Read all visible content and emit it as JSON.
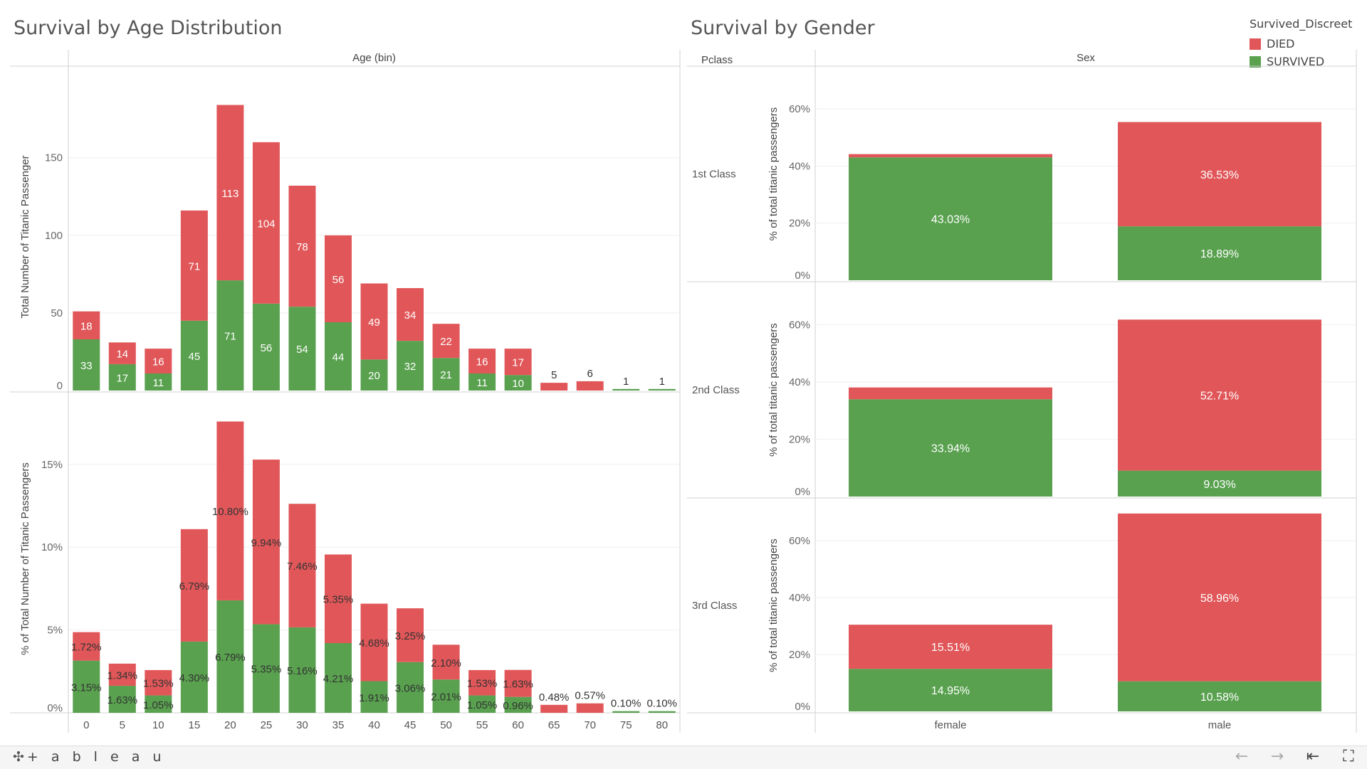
{
  "titles": {
    "left": "Survival by Age Distribution",
    "right": "Survival by Gender"
  },
  "legend": {
    "title": "Survived_Discreet",
    "items": [
      {
        "label": "DIED",
        "color": "#e15759"
      },
      {
        "label": "SURVIVED",
        "color": "#59a14f"
      }
    ]
  },
  "colors": {
    "died": "#e15759",
    "survived": "#59a14f"
  },
  "chart_data": [
    {
      "type": "bar",
      "stacked": true,
      "header": "Age (bin)",
      "ylabel": "Total Number of Titanic Passenger",
      "ylim": [
        0,
        198
      ],
      "yticks": [
        "0",
        "50",
        "100",
        "150"
      ],
      "categories": [
        "0",
        "5",
        "10",
        "15",
        "20",
        "25",
        "30",
        "35",
        "40",
        "45",
        "50",
        "55",
        "60",
        "65",
        "70",
        "75",
        "80"
      ],
      "series": [
        {
          "name": "SURVIVED",
          "values": [
            33,
            17,
            11,
            45,
            71,
            56,
            54,
            44,
            20,
            32,
            21,
            11,
            10,
            0,
            0,
            1,
            1
          ],
          "labels": [
            "33",
            "17",
            "11",
            "45",
            "71",
            "56",
            "54",
            "44",
            "20",
            "32",
            "21",
            "11",
            "10",
            "",
            "",
            "",
            ""
          ]
        },
        {
          "name": "DIED",
          "values": [
            18,
            14,
            16,
            71,
            113,
            104,
            78,
            56,
            49,
            34,
            22,
            16,
            17,
            5,
            6,
            0,
            0
          ],
          "labels": [
            "18",
            "14",
            "16",
            "71",
            "113",
            "104",
            "78",
            "56",
            "49",
            "34",
            "22",
            "16",
            "17",
            "",
            "",
            "",
            ""
          ]
        }
      ],
      "top_labels": [
        "",
        "",
        "",
        "",
        "",
        "",
        "",
        "",
        "",
        "",
        "",
        "",
        "",
        "5",
        "6",
        "1",
        "1"
      ],
      "grid": true
    },
    {
      "type": "bar",
      "stacked": true,
      "ylabel": "% of Total Number of Titanic Passengers",
      "ylim": [
        0,
        18.6
      ],
      "yticks": [
        "0%",
        "5%",
        "10%",
        "15%"
      ],
      "categories": [
        "0",
        "5",
        "10",
        "15",
        "20",
        "25",
        "30",
        "35",
        "40",
        "45",
        "50",
        "55",
        "60",
        "65",
        "70",
        "75",
        "80"
      ],
      "series": [
        {
          "name": "SURVIVED",
          "values": [
            3.15,
            1.63,
            1.05,
            4.3,
            6.79,
            5.35,
            5.16,
            4.21,
            1.91,
            3.06,
            2.01,
            1.05,
            0.96,
            0,
            0,
            0.1,
            0.1
          ],
          "labels": [
            "3.15%",
            "1.63%",
            "1.05%",
            "4.30%",
            "6.79%",
            "5.35%",
            "5.16%",
            "4.21%",
            "1.91%",
            "3.06%",
            "2.01%",
            "1.05%",
            "0.96%",
            "",
            "",
            "",
            ""
          ]
        },
        {
          "name": "DIED",
          "values": [
            1.72,
            1.34,
            1.53,
            6.79,
            10.8,
            9.94,
            7.46,
            5.35,
            4.68,
            3.25,
            2.1,
            1.53,
            1.63,
            0.48,
            0.57,
            0,
            0
          ],
          "labels": [
            "1.72%",
            "1.34%",
            "1.53%",
            "6.79%",
            "10.80%",
            "9.94%",
            "7.46%",
            "5.35%",
            "4.68%",
            "3.25%",
            "2.10%",
            "1.53%",
            "1.63%",
            "",
            "",
            "",
            ""
          ]
        }
      ],
      "top_labels": [
        "",
        "",
        "",
        "",
        "",
        "",
        "",
        "",
        "",
        "",
        "",
        "",
        "",
        "0.48%",
        "0.57%",
        "0.10%",
        "0.10%"
      ],
      "grid": true
    },
    {
      "type": "bar",
      "stacked": true,
      "row_header": "Pclass",
      "col_header": "Sex",
      "ylabel": "% of total titanic passengers",
      "ylim": [
        0,
        70
      ],
      "yticks": [
        "0%",
        "20%",
        "40%",
        "60%"
      ],
      "categories": [
        "female",
        "male"
      ],
      "panels": [
        {
          "name": "1st Class",
          "series": [
            {
              "name": "SURVIVED",
              "values": [
                43.03,
                18.89
              ],
              "labels": [
                "43.03%",
                "18.89%"
              ]
            },
            {
              "name": "DIED",
              "values": [
                1.16,
                36.53
              ],
              "labels": [
                "",
                "36.53%"
              ]
            }
          ]
        },
        {
          "name": "2nd Class",
          "series": [
            {
              "name": "SURVIVED",
              "values": [
                33.94,
                9.03
              ],
              "labels": [
                "33.94%",
                "9.03%"
              ]
            },
            {
              "name": "DIED",
              "values": [
                4.13,
                52.71
              ],
              "labels": [
                "",
                "52.71%"
              ]
            }
          ]
        },
        {
          "name": "3rd Class",
          "series": [
            {
              "name": "SURVIVED",
              "values": [
                14.95,
                10.58
              ],
              "labels": [
                "14.95%",
                "10.58%"
              ]
            },
            {
              "name": "DIED",
              "values": [
                15.51,
                58.96
              ],
              "labels": [
                "15.51%",
                "58.96%"
              ]
            }
          ]
        }
      ],
      "grid": true
    }
  ],
  "toolbar": {
    "brand": "+ a b l e a u",
    "icons": [
      "tableau-logo-icon",
      "undo-icon",
      "redo-icon",
      "revert-icon",
      "fullscreen-icon"
    ],
    "undo_glyph": "←",
    "redo_glyph": "→",
    "revert_glyph": "⇤",
    "fullscreen_glyph": "⛶"
  }
}
